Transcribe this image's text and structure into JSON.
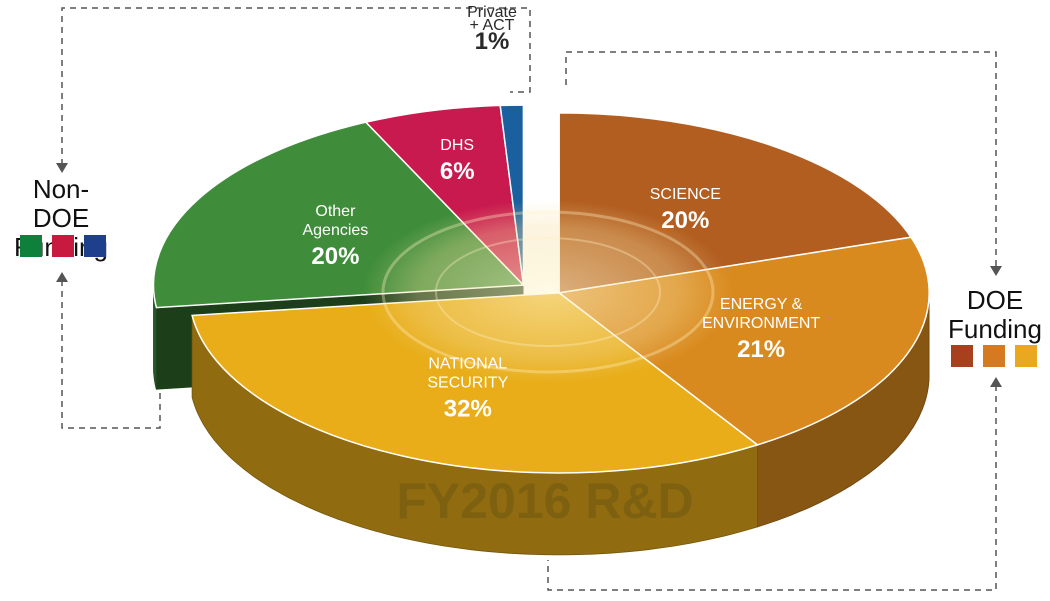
{
  "chart_data": {
    "type": "pie",
    "watermark": "FY2016 R&D",
    "slices": [
      {
        "name_lines": [
          "SCIENCE"
        ],
        "value": 20,
        "value_label": "20%",
        "color": "#b25e20",
        "group": "doe"
      },
      {
        "name_lines": [
          "ENERGY &",
          "ENVIRONMENT"
        ],
        "value": 21,
        "value_label": "21%",
        "color": "#d98a1f",
        "group": "doe"
      },
      {
        "name_lines": [
          "NATIONAL",
          "SECURITY"
        ],
        "value": 32,
        "value_label": "32%",
        "color": "#e8ad18",
        "group": "doe"
      },
      {
        "name_lines": [
          "Other",
          "Agencies"
        ],
        "value": 20,
        "value_label": "20%",
        "color": "#3f8d3a",
        "group": "non_doe"
      },
      {
        "name_lines": [
          "DHS"
        ],
        "value": 6,
        "value_label": "6%",
        "color": "#c81a4e",
        "group": "non_doe"
      },
      {
        "name_lines": [
          "Private",
          "+ ACT"
        ],
        "value": 1,
        "value_label": "1%",
        "color": "#1a5f9e",
        "group": "non_doe"
      }
    ],
    "legend": {
      "non_doe": {
        "title_lines": [
          "Non-DOE",
          "Funding"
        ],
        "colors": [
          "#0f7f3c",
          "#c81a3e",
          "#1e3f8c"
        ]
      },
      "doe": {
        "title_lines": [
          "DOE",
          "Funding"
        ],
        "colors": [
          "#a8401e",
          "#d67a22",
          "#e9a820"
        ]
      }
    }
  }
}
